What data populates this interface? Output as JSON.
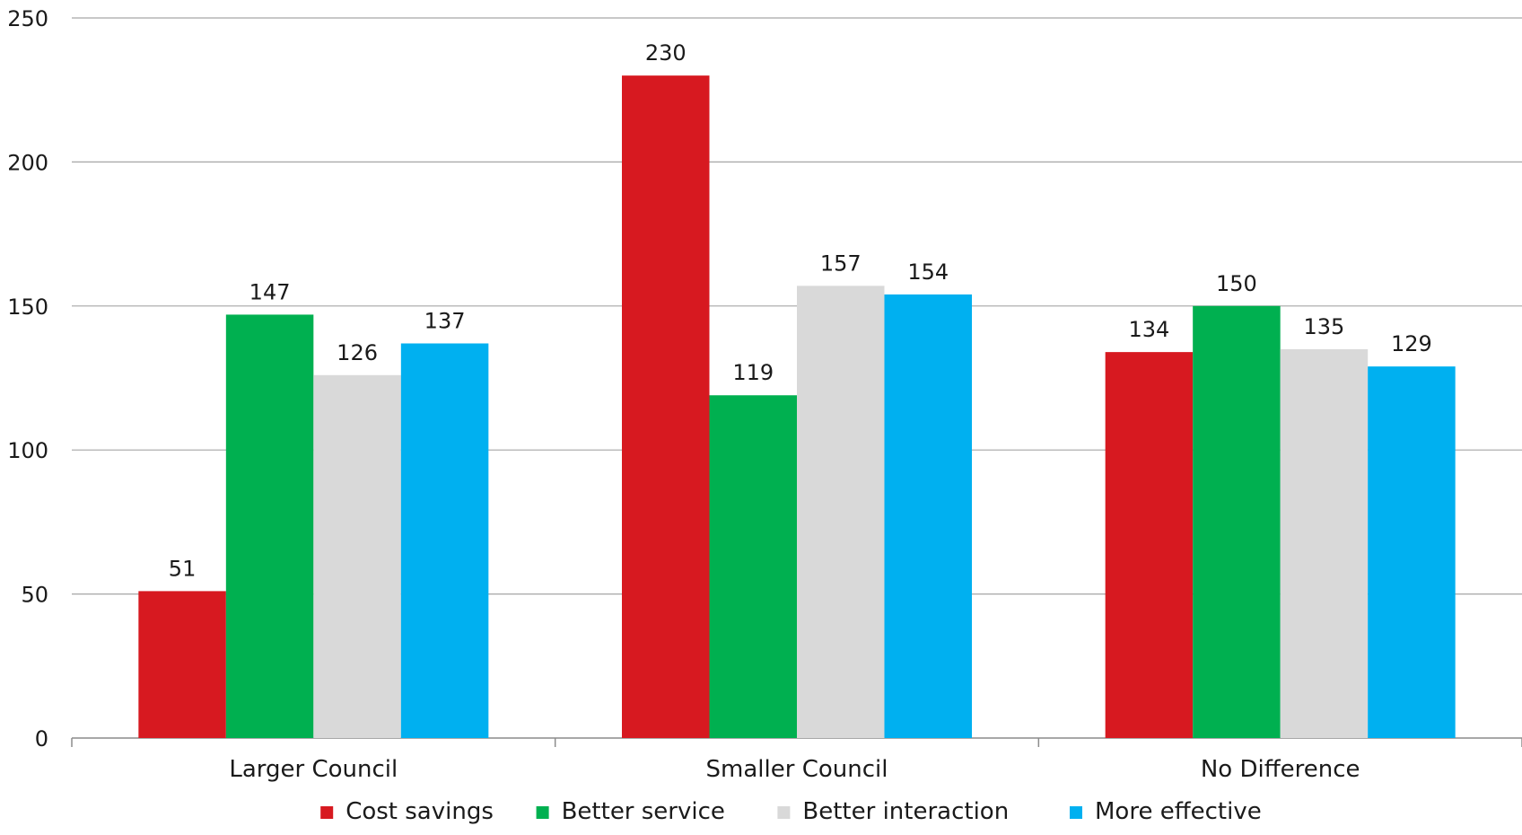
{
  "chart_data": {
    "type": "bar",
    "title": "",
    "xlabel": "",
    "ylabel": "",
    "ylim": [
      0,
      250
    ],
    "yticks": [
      "0",
      "50",
      "100",
      "150",
      "200",
      "250"
    ],
    "categories": [
      "Larger Council",
      "Smaller Council",
      "No Difference"
    ],
    "series": [
      {
        "name": "Cost savings",
        "color": "#d71920",
        "values": [
          51,
          230,
          134
        ]
      },
      {
        "name": "Better service",
        "color": "#00b050",
        "values": [
          147,
          119,
          150
        ]
      },
      {
        "name": "Better interaction",
        "color": "#d9d9d9",
        "values": [
          126,
          157,
          135
        ]
      },
      {
        "name": "More effective",
        "color": "#00b0f0",
        "values": [
          137,
          154,
          129
        ]
      }
    ],
    "grid": true,
    "data_labels": true,
    "legend_position": "bottom"
  }
}
